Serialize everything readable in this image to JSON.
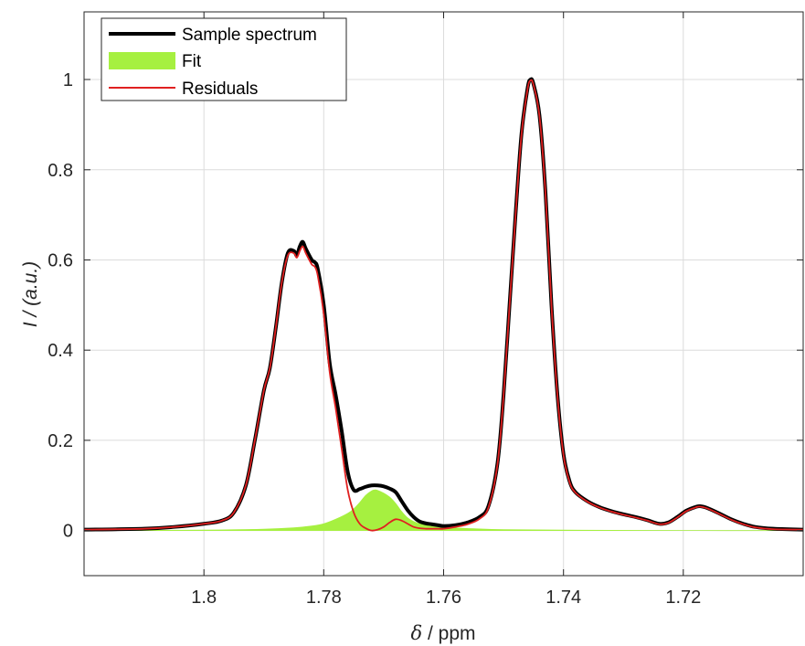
{
  "chart_data": {
    "type": "line",
    "title": "",
    "xlabel": {
      "symbol": "δ",
      "unit": " / ppm"
    },
    "ylabel": {
      "symbol": "I",
      "unit": " / (a.u.)"
    },
    "xlim": [
      1.82,
      1.7
    ],
    "x_reversed": true,
    "ylim": [
      -0.1,
      1.15
    ],
    "xticks": [
      1.8,
      1.78,
      1.76,
      1.74,
      1.72
    ],
    "xtick_labels": [
      "1.8",
      "1.78",
      "1.76",
      "1.74",
      "1.72"
    ],
    "yticks": [
      0,
      0.2,
      0.4,
      0.6,
      0.8,
      1.0
    ],
    "ytick_labels": [
      "0",
      "0.2",
      "0.4",
      "0.6",
      "0.8",
      "1"
    ],
    "grid": true,
    "legend_position": "top-left",
    "series": [
      {
        "name": "Sample spectrum",
        "style": "line",
        "color": "#000000",
        "points": [
          [
            1.82,
            0.002
          ],
          [
            1.81,
            0.004
          ],
          [
            1.805,
            0.008
          ],
          [
            1.8,
            0.015
          ],
          [
            1.797,
            0.022
          ],
          [
            1.795,
            0.04
          ],
          [
            1.793,
            0.1
          ],
          [
            1.7915,
            0.2
          ],
          [
            1.79,
            0.31
          ],
          [
            1.789,
            0.36
          ],
          [
            1.788,
            0.45
          ],
          [
            1.787,
            0.55
          ],
          [
            1.786,
            0.615
          ],
          [
            1.785,
            0.62
          ],
          [
            1.7845,
            0.61
          ],
          [
            1.784,
            0.63
          ],
          [
            1.7835,
            0.64
          ],
          [
            1.783,
            0.625
          ],
          [
            1.782,
            0.6
          ],
          [
            1.7815,
            0.595
          ],
          [
            1.781,
            0.58
          ],
          [
            1.78,
            0.5
          ],
          [
            1.779,
            0.37
          ],
          [
            1.778,
            0.3
          ],
          [
            1.777,
            0.22
          ],
          [
            1.776,
            0.13
          ],
          [
            1.775,
            0.09
          ],
          [
            1.774,
            0.092
          ],
          [
            1.773,
            0.097
          ],
          [
            1.772,
            0.1
          ],
          [
            1.771,
            0.1
          ],
          [
            1.77,
            0.098
          ],
          [
            1.769,
            0.093
          ],
          [
            1.768,
            0.085
          ],
          [
            1.767,
            0.065
          ],
          [
            1.766,
            0.045
          ],
          [
            1.765,
            0.03
          ],
          [
            1.764,
            0.02
          ],
          [
            1.763,
            0.016
          ],
          [
            1.762,
            0.014
          ],
          [
            1.761,
            0.012
          ],
          [
            1.76,
            0.01
          ],
          [
            1.758,
            0.012
          ],
          [
            1.756,
            0.018
          ],
          [
            1.754,
            0.03
          ],
          [
            1.7525,
            0.055
          ],
          [
            1.751,
            0.15
          ],
          [
            1.75,
            0.3
          ],
          [
            1.749,
            0.5
          ],
          [
            1.748,
            0.7
          ],
          [
            1.747,
            0.88
          ],
          [
            1.746,
            0.98
          ],
          [
            1.7455,
            1.0
          ],
          [
            1.745,
            0.99
          ],
          [
            1.744,
            0.92
          ],
          [
            1.743,
            0.75
          ],
          [
            1.742,
            0.5
          ],
          [
            1.741,
            0.3
          ],
          [
            1.74,
            0.17
          ],
          [
            1.739,
            0.11
          ],
          [
            1.738,
            0.085
          ],
          [
            1.736,
            0.065
          ],
          [
            1.734,
            0.052
          ],
          [
            1.732,
            0.043
          ],
          [
            1.73,
            0.036
          ],
          [
            1.728,
            0.03
          ],
          [
            1.726,
            0.023
          ],
          [
            1.724,
            0.015
          ],
          [
            1.7225,
            0.018
          ],
          [
            1.721,
            0.03
          ],
          [
            1.7195,
            0.044
          ],
          [
            1.718,
            0.052
          ],
          [
            1.7172,
            0.054
          ],
          [
            1.716,
            0.05
          ],
          [
            1.714,
            0.038
          ],
          [
            1.712,
            0.025
          ],
          [
            1.71,
            0.015
          ],
          [
            1.708,
            0.008
          ],
          [
            1.705,
            0.004
          ],
          [
            1.7,
            0.002
          ]
        ]
      },
      {
        "name": "Fit",
        "style": "area",
        "color": "#a6f040",
        "points": [
          [
            1.82,
            0.0
          ],
          [
            1.8,
            0.001
          ],
          [
            1.79,
            0.003
          ],
          [
            1.785,
            0.006
          ],
          [
            1.782,
            0.01
          ],
          [
            1.78,
            0.015
          ],
          [
            1.778,
            0.025
          ],
          [
            1.776,
            0.038
          ],
          [
            1.775,
            0.048
          ],
          [
            1.774,
            0.062
          ],
          [
            1.773,
            0.078
          ],
          [
            1.772,
            0.088
          ],
          [
            1.7715,
            0.09
          ],
          [
            1.771,
            0.089
          ],
          [
            1.77,
            0.083
          ],
          [
            1.769,
            0.074
          ],
          [
            1.768,
            0.06
          ],
          [
            1.767,
            0.042
          ],
          [
            1.766,
            0.028
          ],
          [
            1.765,
            0.02
          ],
          [
            1.764,
            0.015
          ],
          [
            1.762,
            0.01
          ],
          [
            1.76,
            0.007
          ],
          [
            1.755,
            0.004
          ],
          [
            1.75,
            0.002
          ],
          [
            1.74,
            0.001
          ],
          [
            1.72,
            0.0
          ],
          [
            1.7,
            0.0
          ]
        ]
      },
      {
        "name": "Residuals",
        "style": "line",
        "color": "#e02020",
        "points": [
          [
            1.82,
            0.002
          ],
          [
            1.81,
            0.004
          ],
          [
            1.805,
            0.008
          ],
          [
            1.8,
            0.015
          ],
          [
            1.797,
            0.022
          ],
          [
            1.795,
            0.04
          ],
          [
            1.793,
            0.1
          ],
          [
            1.7915,
            0.2
          ],
          [
            1.79,
            0.31
          ],
          [
            1.789,
            0.36
          ],
          [
            1.788,
            0.45
          ],
          [
            1.787,
            0.55
          ],
          [
            1.786,
            0.61
          ],
          [
            1.785,
            0.615
          ],
          [
            1.7845,
            0.605
          ],
          [
            1.784,
            0.62
          ],
          [
            1.7835,
            0.63
          ],
          [
            1.783,
            0.615
          ],
          [
            1.782,
            0.59
          ],
          [
            1.7815,
            0.585
          ],
          [
            1.781,
            0.565
          ],
          [
            1.78,
            0.48
          ],
          [
            1.779,
            0.35
          ],
          [
            1.778,
            0.27
          ],
          [
            1.777,
            0.18
          ],
          [
            1.776,
            0.09
          ],
          [
            1.775,
            0.04
          ],
          [
            1.774,
            0.015
          ],
          [
            1.773,
            0.005
          ],
          [
            1.772,
            0.0
          ],
          [
            1.771,
            0.002
          ],
          [
            1.77,
            0.008
          ],
          [
            1.769,
            0.018
          ],
          [
            1.768,
            0.025
          ],
          [
            1.767,
            0.022
          ],
          [
            1.766,
            0.015
          ],
          [
            1.765,
            0.008
          ],
          [
            1.764,
            0.005
          ],
          [
            1.763,
            0.004
          ],
          [
            1.762,
            0.004
          ],
          [
            1.761,
            0.004
          ],
          [
            1.76,
            0.004
          ],
          [
            1.758,
            0.008
          ],
          [
            1.756,
            0.014
          ],
          [
            1.754,
            0.026
          ],
          [
            1.7525,
            0.052
          ],
          [
            1.751,
            0.148
          ],
          [
            1.75,
            0.298
          ],
          [
            1.749,
            0.498
          ],
          [
            1.748,
            0.698
          ],
          [
            1.747,
            0.878
          ],
          [
            1.746,
            0.978
          ],
          [
            1.7455,
            0.998
          ],
          [
            1.745,
            0.988
          ],
          [
            1.744,
            0.918
          ],
          [
            1.743,
            0.748
          ],
          [
            1.742,
            0.498
          ],
          [
            1.741,
            0.298
          ],
          [
            1.74,
            0.168
          ],
          [
            1.739,
            0.108
          ],
          [
            1.738,
            0.084
          ],
          [
            1.736,
            0.064
          ],
          [
            1.734,
            0.051
          ],
          [
            1.732,
            0.042
          ],
          [
            1.73,
            0.035
          ],
          [
            1.728,
            0.029
          ],
          [
            1.726,
            0.022
          ],
          [
            1.724,
            0.014
          ],
          [
            1.7225,
            0.017
          ],
          [
            1.721,
            0.029
          ],
          [
            1.7195,
            0.043
          ],
          [
            1.718,
            0.051
          ],
          [
            1.7172,
            0.053
          ],
          [
            1.716,
            0.049
          ],
          [
            1.714,
            0.037
          ],
          [
            1.712,
            0.024
          ],
          [
            1.71,
            0.014
          ],
          [
            1.708,
            0.007
          ],
          [
            1.705,
            0.003
          ],
          [
            1.7,
            0.002
          ]
        ]
      }
    ]
  }
}
